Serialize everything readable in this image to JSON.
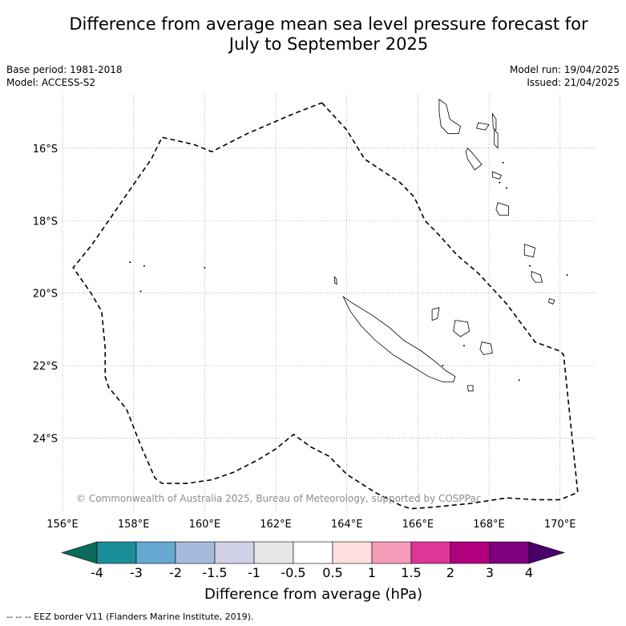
{
  "title_line1": "Difference from average mean sea level pressure forecast for",
  "title_line2": "July to September 2025",
  "base_period": "Base period: 1981-2018",
  "model": "Model: ACCESS-S2",
  "model_run": "Model run: 19/04/2025",
  "issued": "Issued: 21/04/2025",
  "copyright": "© Commonwealth of Australia 2025, Bureau of Meteorology, supported by COSPPac",
  "footnote": "--  --  -- EEZ border V11 (Flanders Marine Institute, 2019).",
  "map": {
    "lon_range": [
      156.0,
      171.0
    ],
    "lat_range": [
      -26.0,
      -14.5
    ],
    "lon_ticks": [
      {
        "value": 156,
        "label": "156°E"
      },
      {
        "value": 158,
        "label": "158°E"
      },
      {
        "value": 160,
        "label": "160°E"
      },
      {
        "value": 162,
        "label": "162°E"
      },
      {
        "value": 164,
        "label": "164°E"
      },
      {
        "value": 166,
        "label": "166°E"
      },
      {
        "value": 168,
        "label": "168°E"
      },
      {
        "value": 170,
        "label": "170°E"
      }
    ],
    "lat_ticks": [
      {
        "value": -16,
        "label": "16°S"
      },
      {
        "value": -18,
        "label": "18°S"
      },
      {
        "value": -20,
        "label": "20°S"
      },
      {
        "value": -22,
        "label": "22°S"
      },
      {
        "value": -24,
        "label": "24°S"
      }
    ],
    "grid": true,
    "eez_border": [
      [
        163.3,
        -14.75
      ],
      [
        164.0,
        -15.5
      ],
      [
        164.5,
        -16.3
      ],
      [
        165.5,
        -16.95
      ],
      [
        165.9,
        -17.35
      ],
      [
        166.2,
        -18.0
      ],
      [
        166.6,
        -18.4
      ],
      [
        167.1,
        -18.95
      ],
      [
        167.7,
        -19.45
      ],
      [
        168.5,
        -20.3
      ],
      [
        169.3,
        -21.35
      ],
      [
        170.0,
        -21.6
      ],
      [
        170.1,
        -21.7
      ],
      [
        170.5,
        -25.5
      ],
      [
        170.0,
        -25.7
      ],
      [
        169.3,
        -25.7
      ],
      [
        168.5,
        -25.65
      ],
      [
        167.5,
        -25.8
      ],
      [
        166.5,
        -25.9
      ],
      [
        165.8,
        -25.95
      ],
      [
        165.5,
        -25.85
      ],
      [
        164.8,
        -25.5
      ],
      [
        164.0,
        -25.0
      ],
      [
        163.5,
        -24.5
      ],
      [
        163.0,
        -24.25
      ],
      [
        162.5,
        -23.9
      ],
      [
        162.0,
        -24.3
      ],
      [
        161.5,
        -24.6
      ],
      [
        160.8,
        -24.95
      ],
      [
        160.2,
        -25.15
      ],
      [
        159.5,
        -25.25
      ],
      [
        158.8,
        -25.25
      ],
      [
        158.6,
        -25.1
      ],
      [
        158.2,
        -24.2
      ],
      [
        157.8,
        -23.2
      ],
      [
        157.3,
        -22.6
      ],
      [
        157.2,
        -22.3
      ],
      [
        157.2,
        -21.5
      ],
      [
        157.1,
        -20.5
      ],
      [
        156.8,
        -20.0
      ],
      [
        156.3,
        -19.3
      ],
      [
        156.8,
        -18.7
      ],
      [
        157.3,
        -18.0
      ],
      [
        158.0,
        -17.0
      ],
      [
        158.5,
        -16.3
      ],
      [
        158.8,
        -15.7
      ],
      [
        159.7,
        -15.9
      ],
      [
        160.2,
        -16.1
      ],
      [
        161.2,
        -15.6
      ],
      [
        162.5,
        -15.05
      ],
      [
        163.3,
        -14.75
      ]
    ],
    "land": [
      {
        "name": "new-caledonia",
        "outline": [
          [
            163.9,
            -20.1
          ],
          [
            164.2,
            -20.3
          ],
          [
            164.7,
            -20.6
          ],
          [
            165.2,
            -20.95
          ],
          [
            165.6,
            -21.3
          ],
          [
            166.1,
            -21.6
          ],
          [
            166.5,
            -21.9
          ],
          [
            166.8,
            -22.15
          ],
          [
            167.05,
            -22.3
          ],
          [
            167.0,
            -22.45
          ],
          [
            166.7,
            -22.45
          ],
          [
            166.3,
            -22.3
          ],
          [
            165.8,
            -22.0
          ],
          [
            165.3,
            -21.7
          ],
          [
            164.8,
            -21.3
          ],
          [
            164.4,
            -20.9
          ],
          [
            164.1,
            -20.5
          ]
        ]
      },
      {
        "name": "belep-islands",
        "outline": [
          [
            163.65,
            -19.55
          ],
          [
            163.7,
            -19.6
          ],
          [
            163.72,
            -19.75
          ],
          [
            163.66,
            -19.72
          ]
        ]
      },
      {
        "name": "ouvea",
        "outline": [
          [
            166.4,
            -20.45
          ],
          [
            166.6,
            -20.4
          ],
          [
            166.55,
            -20.7
          ],
          [
            166.4,
            -20.75
          ]
        ]
      },
      {
        "name": "lifou",
        "outline": [
          [
            167.05,
            -20.75
          ],
          [
            167.4,
            -20.8
          ],
          [
            167.45,
            -21.05
          ],
          [
            167.2,
            -21.2
          ],
          [
            167.0,
            -21.05
          ]
        ]
      },
      {
        "name": "mare",
        "outline": [
          [
            167.8,
            -21.35
          ],
          [
            168.05,
            -21.4
          ],
          [
            168.1,
            -21.65
          ],
          [
            167.85,
            -21.7
          ],
          [
            167.75,
            -21.55
          ]
        ]
      },
      {
        "name": "ile-des-pins",
        "outline": [
          [
            167.4,
            -22.55
          ],
          [
            167.55,
            -22.55
          ],
          [
            167.55,
            -22.7
          ],
          [
            167.42,
            -22.7
          ]
        ]
      },
      {
        "name": "espiritu-santo",
        "outline": [
          [
            166.6,
            -14.65
          ],
          [
            166.8,
            -14.8
          ],
          [
            166.9,
            -15.2
          ],
          [
            167.2,
            -15.4
          ],
          [
            167.15,
            -15.6
          ],
          [
            166.85,
            -15.6
          ],
          [
            166.65,
            -15.4
          ],
          [
            166.6,
            -15.0
          ]
        ]
      },
      {
        "name": "malekula",
        "outline": [
          [
            167.4,
            -16.0
          ],
          [
            167.5,
            -16.1
          ],
          [
            167.8,
            -16.45
          ],
          [
            167.6,
            -16.6
          ],
          [
            167.4,
            -16.3
          ],
          [
            167.35,
            -16.1
          ]
        ]
      },
      {
        "name": "maewo",
        "outline": [
          [
            168.1,
            -15.05
          ],
          [
            168.2,
            -15.2
          ],
          [
            168.2,
            -15.5
          ],
          [
            168.12,
            -15.45
          ]
        ]
      },
      {
        "name": "ambae",
        "outline": [
          [
            167.7,
            -15.3
          ],
          [
            168.0,
            -15.35
          ],
          [
            167.9,
            -15.5
          ],
          [
            167.65,
            -15.45
          ]
        ]
      },
      {
        "name": "efate",
        "outline": [
          [
            168.25,
            -17.5
          ],
          [
            168.55,
            -17.6
          ],
          [
            168.55,
            -17.85
          ],
          [
            168.3,
            -17.85
          ],
          [
            168.2,
            -17.7
          ]
        ]
      },
      {
        "name": "erromango",
        "outline": [
          [
            169.0,
            -18.65
          ],
          [
            169.3,
            -18.75
          ],
          [
            169.25,
            -19.0
          ],
          [
            169.0,
            -18.95
          ]
        ]
      },
      {
        "name": "tanna",
        "outline": [
          [
            169.2,
            -19.4
          ],
          [
            169.45,
            -19.5
          ],
          [
            169.5,
            -19.7
          ],
          [
            169.3,
            -19.7
          ],
          [
            169.2,
            -19.55
          ]
        ]
      },
      {
        "name": "aneityum",
        "outline": [
          [
            169.7,
            -20.15
          ],
          [
            169.85,
            -20.2
          ],
          [
            169.8,
            -20.3
          ],
          [
            169.68,
            -20.25
          ]
        ]
      },
      {
        "name": "epi",
        "outline": [
          [
            168.1,
            -16.65
          ],
          [
            168.35,
            -16.75
          ],
          [
            168.3,
            -16.85
          ],
          [
            168.1,
            -16.8
          ]
        ]
      },
      {
        "name": "pentecost",
        "outline": [
          [
            168.15,
            -15.5
          ],
          [
            168.25,
            -15.6
          ],
          [
            168.25,
            -16.0
          ],
          [
            168.15,
            -15.9
          ]
        ]
      }
    ],
    "islets": [
      [
        157.9,
        -19.15
      ],
      [
        158.3,
        -19.25
      ],
      [
        160.0,
        -19.3
      ],
      [
        158.2,
        -19.95
      ],
      [
        169.15,
        -19.25
      ],
      [
        170.2,
        -19.5
      ],
      [
        168.85,
        -22.4
      ],
      [
        167.3,
        -21.45
      ],
      [
        166.7,
        -22.0
      ],
      [
        168.4,
        -16.4
      ],
      [
        168.5,
        -17.1
      ],
      [
        168.3,
        -16.95
      ]
    ]
  },
  "colorbar": {
    "title": "Difference from average (hPa)",
    "colors": [
      "#0b6b5a",
      "#1a8f9a",
      "#65a8d0",
      "#a6badc",
      "#d0d0e6",
      "#e6e6e6",
      "#ffffff",
      "#ffdede",
      "#f49cb8",
      "#dd359a",
      "#b0007f",
      "#7e007e",
      "#4a006a"
    ],
    "tick_labels": [
      "-4",
      "-3",
      "-2",
      "-1.5",
      "-1",
      "-0.5",
      "0.5",
      "1",
      "1.5",
      "2",
      "3",
      "4"
    ]
  }
}
